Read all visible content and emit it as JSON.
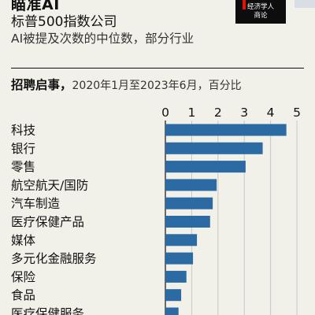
{
  "header": {
    "title": "瞄准AI",
    "badge_line1": "经济学人",
    "badge_line2": "商论",
    "subtitle": "标普500指数公司",
    "description": "AI被提及次数的中位数，部分行业",
    "section_bold": "招聘启事，",
    "section_rest": "2020年1月至2023年6月，百分比"
  },
  "colors": {
    "bar": "#2b6aa3",
    "badge_accent": "#e3120b",
    "background": "#f1f0e9"
  },
  "chart_data": {
    "type": "bar",
    "orientation": "horizontal",
    "categories": [
      "科技",
      "银行",
      "零售",
      "航空航天/国防",
      "汽车制造",
      "医疗保健产品",
      "媒体",
      "多元化金融服务",
      "保险",
      "食品",
      "医疗保健服务"
    ],
    "values": [
      4.6,
      3.7,
      3.05,
      1.95,
      1.8,
      1.7,
      1.2,
      1.05,
      0.8,
      0.6,
      0.5
    ],
    "xlim": [
      0,
      5
    ],
    "xticks": [
      "0",
      "1",
      "2",
      "3",
      "4",
      "5"
    ],
    "grid": true,
    "xaxis_position": "top"
  }
}
